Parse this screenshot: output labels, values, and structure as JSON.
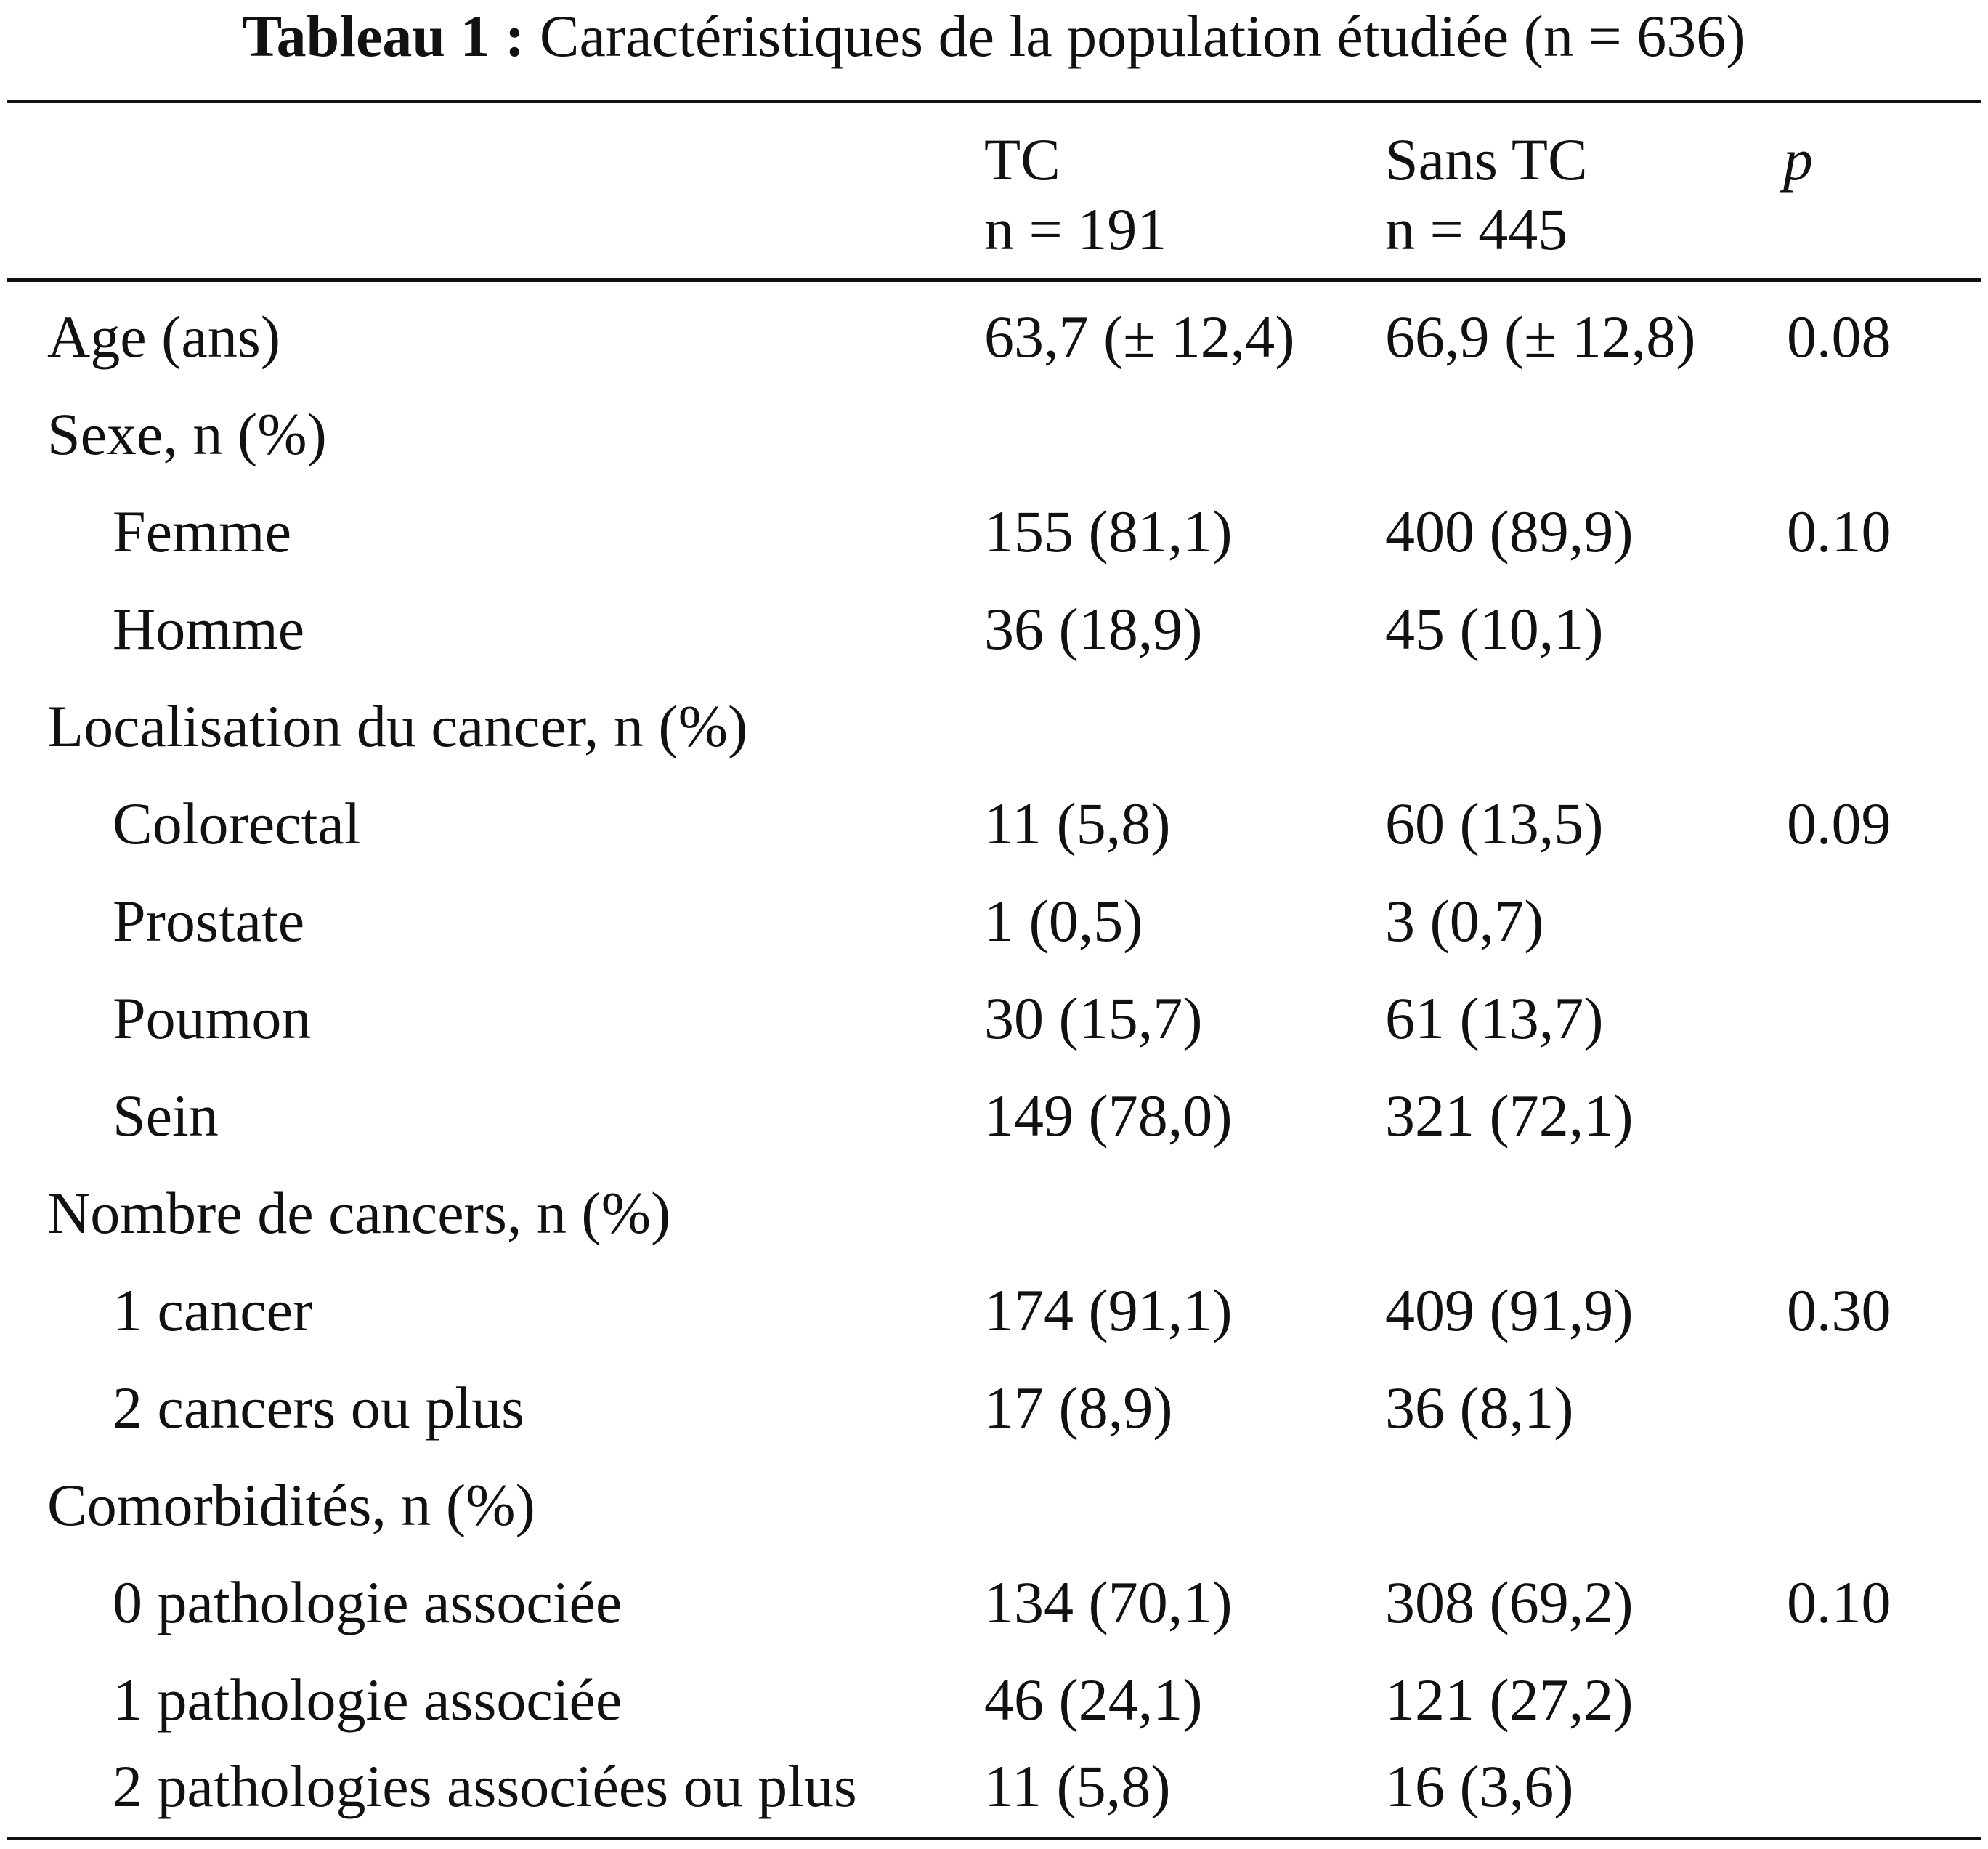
{
  "caption": {
    "label": "Tableau 1 :",
    "text": "Caractéristiques de la population étudiée (n = 636)"
  },
  "header": {
    "tc_name": "TC",
    "tc_n": "n = 191",
    "stc_name": "Sans TC",
    "stc_n": "n = 445",
    "p": "p"
  },
  "rows": [
    {
      "label": "Age (ans)",
      "tc": "63,7 (± 12,4)",
      "stc": "66,9 (± 12,8)",
      "p": "0.08"
    },
    {
      "label": "Sexe, n (%)",
      "tc": "",
      "stc": "",
      "p": ""
    },
    {
      "label": "Femme",
      "tc": "155 (81,1)",
      "stc": "400 (89,9)",
      "p": "0.10"
    },
    {
      "label": "Homme",
      "tc": "36 (18,9)",
      "stc": "45 (10,1)",
      "p": ""
    },
    {
      "label": "Localisation du cancer, n (%)",
      "tc": "",
      "stc": "",
      "p": ""
    },
    {
      "label": "Colorectal",
      "tc": "11 (5,8)",
      "stc": "60 (13,5)",
      "p": "0.09"
    },
    {
      "label": "Prostate",
      "tc": "1 (0,5)",
      "stc": "3 (0,7)",
      "p": ""
    },
    {
      "label": "Poumon",
      "tc": "30 (15,7)",
      "stc": "61 (13,7)",
      "p": ""
    },
    {
      "label": "Sein",
      "tc": "149 (78,0)",
      "stc": "321 (72,1)",
      "p": ""
    },
    {
      "label": "Nombre de cancers, n (%)",
      "tc": "",
      "stc": "",
      "p": ""
    },
    {
      "label": "1 cancer",
      "tc": "174 (91,1)",
      "stc": "409 (91,9)",
      "p": "0.30"
    },
    {
      "label": "2 cancers ou plus",
      "tc": "17 (8,9)",
      "stc": "36 (8,1)",
      "p": ""
    },
    {
      "label": "Comorbidités, n (%)",
      "tc": "",
      "stc": "",
      "p": ""
    },
    {
      "label": "0 pathologie associée",
      "tc": "134 (70,1)",
      "stc": "308 (69,2)",
      "p": "0.10"
    },
    {
      "label": "1 pathologie associée",
      "tc": "46 (24,1)",
      "stc": "121 (27,2)",
      "p": ""
    },
    {
      "label": "2 pathologies associées ou plus",
      "tc": "11 (5,8)",
      "stc": "16 (3,6)",
      "p": ""
    }
  ]
}
